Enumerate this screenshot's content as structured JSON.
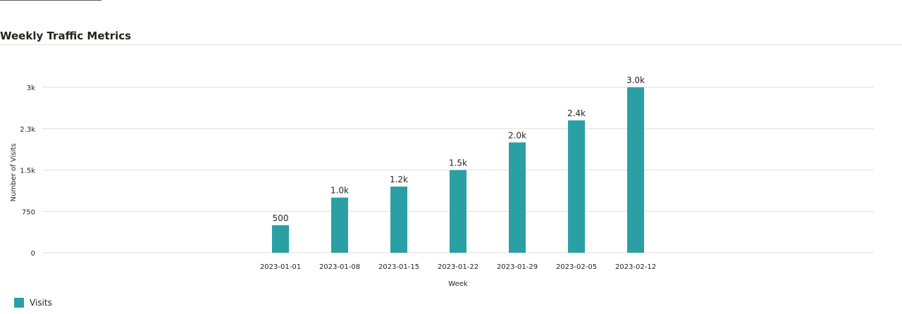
{
  "title": "Weekly Traffic Metrics",
  "accent_color": "#2aa0a4",
  "legend": {
    "label": "Visits"
  },
  "chart_data": {
    "type": "bar",
    "title": "Weekly Traffic Metrics",
    "xlabel": "Week",
    "ylabel": "Number of Visits",
    "categories": [
      "2023-01-01",
      "2023-01-08",
      "2023-01-15",
      "2023-01-22",
      "2023-01-29",
      "2023-02-05",
      "2023-02-12"
    ],
    "series": [
      {
        "name": "Visits",
        "values": [
          500,
          1000,
          1200,
          1500,
          2000,
          2400,
          3000
        ],
        "data_labels": [
          "500",
          "1.0k",
          "1.2k",
          "1.5k",
          "2.0k",
          "2.4k",
          "3.0k"
        ]
      }
    ],
    "y_ticks": [
      0,
      750,
      1500,
      2250,
      3000
    ],
    "y_tick_labels": [
      "0",
      "750",
      "1.5k",
      "2.3k",
      "3k"
    ],
    "ylim": [
      0,
      3000
    ],
    "grid": true,
    "legend_position": "bottom-left"
  }
}
